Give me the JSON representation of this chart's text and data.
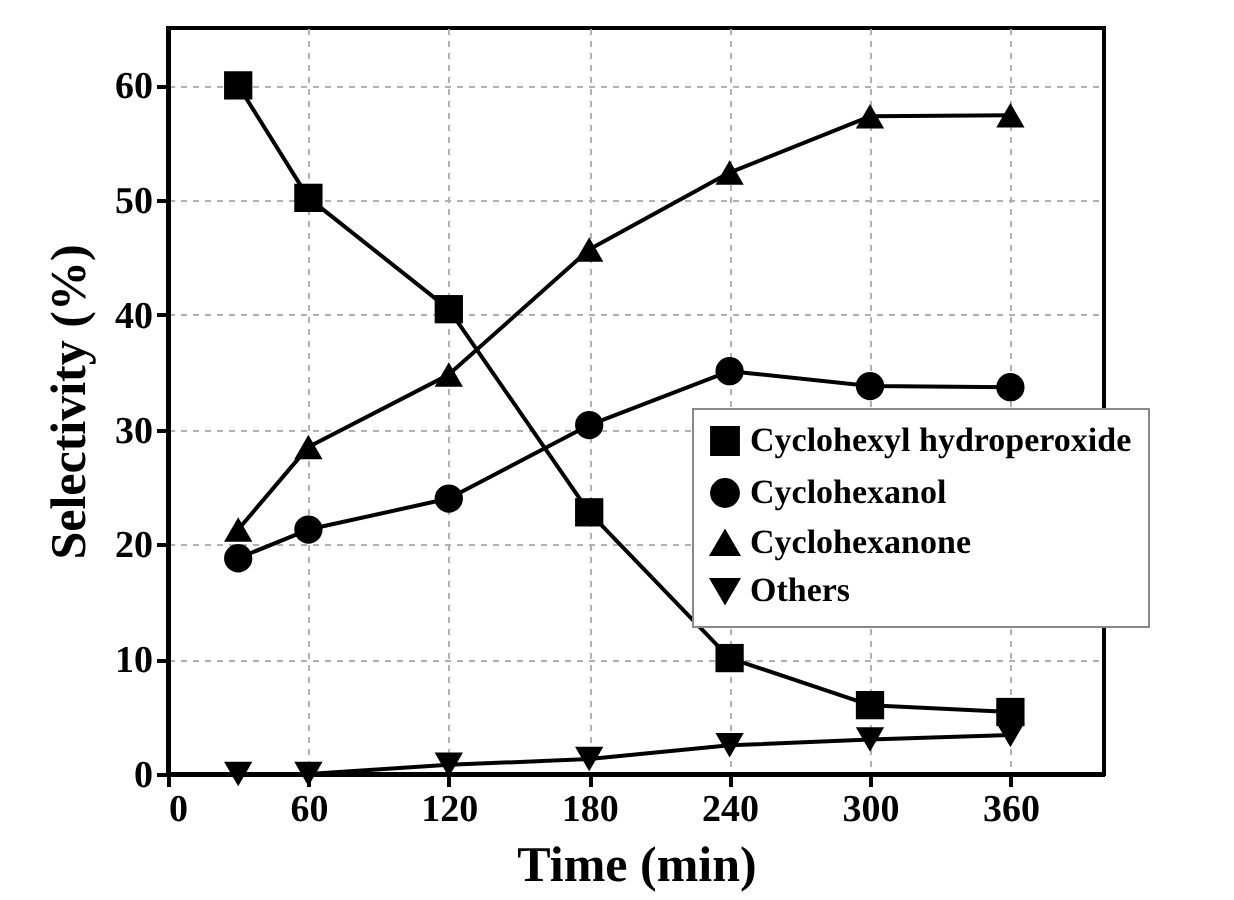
{
  "chart_data": {
    "type": "line",
    "xlabel": "Time (min)",
    "ylabel": "Selectivity (%)",
    "x": [
      30,
      60,
      120,
      180,
      240,
      300,
      360
    ],
    "series": [
      {
        "name": "Cyclohexyl hydroperoxide",
        "color": "#000000",
        "marker": "square",
        "values": [
          60,
          50.2,
          40.5,
          22.8,
          10.1,
          6.0,
          5.4
        ]
      },
      {
        "name": "Cyclohexanol",
        "color": "#000000",
        "marker": "circle",
        "values": [
          18.8,
          21.3,
          24.0,
          30.4,
          35.1,
          33.8,
          33.7
        ]
      },
      {
        "name": "Cyclohexanone",
        "color": "#000000",
        "marker": "triangle",
        "values": [
          21.3,
          28.5,
          34.8,
          45.7,
          52.4,
          57.3,
          57.4
        ]
      },
      {
        "name": "Others",
        "color": "#000000",
        "marker": "triangle-down",
        "values": [
          0,
          0,
          0.8,
          1.3,
          2.5,
          3.0,
          3.4
        ]
      }
    ],
    "xlim": [
      0,
      400
    ],
    "xticks": [
      0,
      60,
      120,
      180,
      240,
      300,
      360
    ],
    "ylim": [
      0,
      65
    ],
    "yticks": [
      0,
      10,
      20,
      30,
      40,
      50,
      60
    ],
    "grid": true,
    "legend": "right"
  }
}
